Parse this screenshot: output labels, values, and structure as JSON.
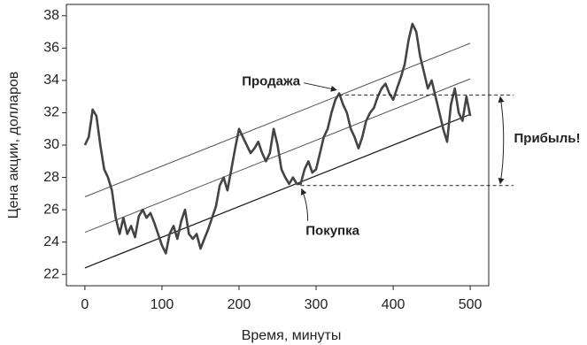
{
  "chart_data": {
    "type": "line",
    "xlabel": "Время, минуты",
    "ylabel": "Цена акции, долларов",
    "xlim": [
      -24,
      524
    ],
    "ylim": [
      21.3,
      38.7
    ],
    "xticks": [
      0,
      100,
      200,
      300,
      400,
      500
    ],
    "yticks": [
      22,
      24,
      26,
      28,
      30,
      32,
      34,
      36,
      38
    ],
    "grid": false,
    "x": [
      0,
      5,
      8,
      10,
      15,
      20,
      25,
      30,
      35,
      40,
      45,
      50,
      55,
      60,
      65,
      70,
      75,
      80,
      85,
      90,
      95,
      100,
      105,
      110,
      115,
      120,
      125,
      130,
      135,
      140,
      145,
      150,
      155,
      160,
      165,
      170,
      175,
      180,
      185,
      190,
      195,
      200,
      205,
      210,
      215,
      220,
      225,
      230,
      235,
      240,
      245,
      250,
      255,
      260,
      265,
      270,
      275,
      280,
      285,
      290,
      295,
      300,
      305,
      310,
      315,
      320,
      325,
      330,
      335,
      340,
      345,
      350,
      355,
      360,
      365,
      370,
      375,
      380,
      385,
      390,
      395,
      400,
      405,
      410,
      415,
      420,
      425,
      430,
      435,
      440,
      445,
      450,
      455,
      460,
      465,
      470,
      475,
      480,
      485,
      490,
      495,
      500
    ],
    "series": [
      {
        "color": "#444444",
        "values": [
          30.0,
          30.5,
          31.5,
          32.2,
          31.8,
          30.0,
          28.5,
          28.0,
          27.2,
          25.5,
          24.5,
          25.5,
          24.5,
          25.0,
          24.3,
          25.6,
          26.0,
          25.5,
          25.8,
          25.2,
          24.5,
          23.8,
          23.3,
          24.5,
          25.0,
          24.2,
          25.3,
          26.0,
          24.5,
          24.2,
          24.5,
          23.6,
          24.2,
          24.8,
          25.5,
          26.2,
          27.5,
          28.0,
          27.2,
          28.5,
          29.8,
          31.0,
          30.5,
          30.0,
          29.5,
          29.8,
          30.2,
          29.5,
          29.0,
          29.5,
          31.0,
          30.0,
          28.5,
          28.0,
          27.6,
          28.0,
          27.6,
          27.6,
          28.5,
          29.0,
          28.3,
          28.5,
          29.5,
          30.5,
          31.0,
          32.0,
          32.8,
          33.2,
          32.5,
          32.0,
          31.0,
          30.5,
          29.8,
          30.5,
          31.5,
          32.0,
          32.3,
          33.0,
          33.5,
          33.8,
          33.2,
          32.8,
          33.5,
          34.2,
          35.0,
          36.5,
          37.5,
          37.0,
          35.5,
          34.5,
          33.5,
          34.0,
          33.0,
          32.0,
          31.0,
          30.2,
          32.5,
          33.5,
          32.0,
          31.5,
          33.0,
          31.8
        ]
      }
    ],
    "trend_lines": [
      {
        "color": "#555555",
        "x": [
          0,
          500
        ],
        "values": [
          26.8,
          36.3
        ]
      },
      {
        "color": "#555555",
        "x": [
          0,
          500
        ],
        "values": [
          24.6,
          34.1
        ]
      },
      {
        "color": "#222222",
        "x": [
          0,
          500
        ],
        "values": [
          22.4,
          31.9
        ]
      }
    ],
    "hlines": [
      {
        "y": 33.1,
        "x_start": 330
      },
      {
        "y": 27.5,
        "x_start": 280
      }
    ],
    "annotations": [
      {
        "text": "Продажа",
        "x": 330,
        "y": 33.3
      },
      {
        "text": "Покупка",
        "x": 280,
        "y": 27.5
      }
    ],
    "profit_label": "Прибыль!"
  }
}
